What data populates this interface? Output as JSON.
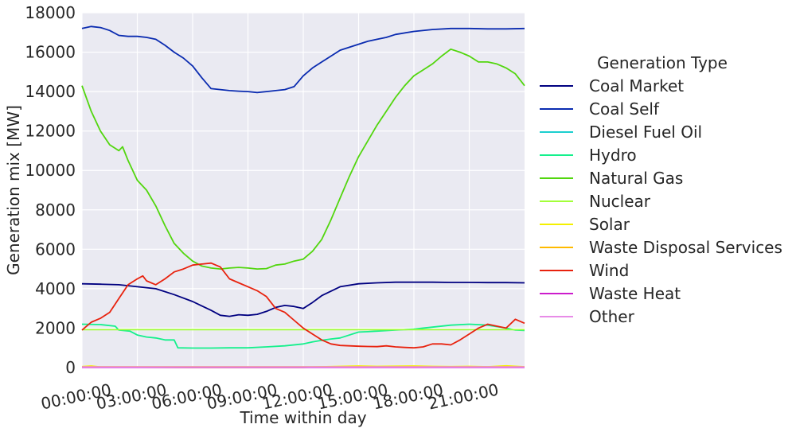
{
  "chart_data": {
    "type": "line",
    "title": "",
    "xlabel": "Time within day",
    "ylabel": "Generation mix [MW]",
    "legend_title": "Generation Type",
    "legend_placement": "right",
    "grid": true,
    "xlim": [
      0,
      24
    ],
    "ylim": [
      0,
      18000
    ],
    "x_ticks": [
      {
        "value": 0,
        "label": "00:00:00"
      },
      {
        "value": 3,
        "label": "03:00:00"
      },
      {
        "value": 6,
        "label": "06:00:00"
      },
      {
        "value": 9,
        "label": "09:00:00"
      },
      {
        "value": 12,
        "label": "12:00:00"
      },
      {
        "value": 15,
        "label": "15:00:00"
      },
      {
        "value": 18,
        "label": "18:00:00"
      },
      {
        "value": 21,
        "label": "21:00:00"
      }
    ],
    "y_ticks": [
      {
        "value": 0,
        "label": "0"
      },
      {
        "value": 2000,
        "label": "2000"
      },
      {
        "value": 4000,
        "label": "4000"
      },
      {
        "value": 6000,
        "label": "6000"
      },
      {
        "value": 8000,
        "label": "8000"
      },
      {
        "value": 10000,
        "label": "10000"
      },
      {
        "value": 12000,
        "label": "12000"
      },
      {
        "value": 14000,
        "label": "14000"
      },
      {
        "value": 16000,
        "label": "16000"
      },
      {
        "value": 18000,
        "label": "18000"
      }
    ],
    "series": [
      {
        "name": "Coal Market",
        "color": "#000080",
        "x": [
          0,
          1,
          2,
          3,
          4,
          5,
          6,
          7,
          7.5,
          8,
          8.5,
          9,
          9.5,
          10,
          10.5,
          11,
          11.5,
          12,
          12.5,
          13,
          14,
          15,
          16,
          17,
          18,
          19,
          20,
          21,
          22,
          23,
          24
        ],
        "y": [
          4250,
          4230,
          4200,
          4100,
          4000,
          3700,
          3350,
          2900,
          2650,
          2600,
          2680,
          2650,
          2700,
          2850,
          3050,
          3150,
          3100,
          3000,
          3300,
          3650,
          4100,
          4250,
          4300,
          4330,
          4330,
          4330,
          4320,
          4320,
          4310,
          4310,
          4300
        ]
      },
      {
        "name": "Coal Self",
        "color": "#0a2bb0",
        "x": [
          0,
          0.5,
          1,
          1.5,
          2,
          2.5,
          3,
          3.5,
          4,
          4.5,
          5,
          5.5,
          6,
          6.5,
          7,
          7.5,
          8,
          8.5,
          9,
          9.5,
          10,
          10.5,
          11,
          11.5,
          12,
          12.5,
          13,
          13.5,
          14,
          14.5,
          15,
          15.5,
          16,
          16.5,
          17,
          18,
          19,
          20,
          21,
          22,
          23,
          24
        ],
        "y": [
          17200,
          17300,
          17250,
          17100,
          16850,
          16800,
          16800,
          16750,
          16650,
          16350,
          16000,
          15700,
          15300,
          14700,
          14150,
          14100,
          14050,
          14020,
          14000,
          13950,
          14000,
          14050,
          14100,
          14250,
          14800,
          15200,
          15500,
          15800,
          16100,
          16250,
          16400,
          16550,
          16650,
          16750,
          16900,
          17050,
          17150,
          17200,
          17200,
          17180,
          17180,
          17200
        ]
      },
      {
        "name": "Diesel Fuel Oil",
        "color": "#1ccfcf",
        "x": [
          0,
          24
        ],
        "y": [
          20,
          20
        ]
      },
      {
        "name": "Hydro",
        "color": "#14f08c",
        "x": [
          0,
          1,
          1.8,
          2,
          2.6,
          3,
          3.5,
          4,
          4.5,
          5,
          5.2,
          6,
          7,
          8,
          9,
          10,
          11,
          12,
          12.5,
          13,
          13.5,
          14,
          15,
          15.5,
          16,
          17,
          18,
          19,
          20,
          21,
          22,
          23,
          23.5,
          24
        ],
        "y": [
          2200,
          2180,
          2100,
          1900,
          1850,
          1650,
          1550,
          1500,
          1400,
          1400,
          1000,
          990,
          990,
          1000,
          1000,
          1050,
          1100,
          1200,
          1300,
          1380,
          1450,
          1500,
          1800,
          1820,
          1850,
          1900,
          1950,
          2050,
          2150,
          2200,
          2150,
          2000,
          1900,
          1880
        ]
      },
      {
        "name": "Natural Gas",
        "color": "#52d60e",
        "x": [
          0,
          0.5,
          1,
          1.5,
          2,
          2.2,
          2.5,
          3,
          3.5,
          4,
          4.5,
          5,
          5.5,
          6,
          6.5,
          7,
          7.5,
          8,
          8.5,
          9,
          9.5,
          10,
          10.5,
          11,
          11.5,
          12,
          12.5,
          13,
          13.5,
          14,
          14.5,
          15,
          15.5,
          16,
          16.5,
          17,
          17.5,
          18,
          18.5,
          19,
          19.5,
          20,
          20.5,
          21,
          21.5,
          22,
          22.5,
          23,
          23.5,
          24
        ],
        "y": [
          14300,
          13000,
          12000,
          11300,
          11000,
          11200,
          10500,
          9500,
          9000,
          8200,
          7200,
          6300,
          5800,
          5400,
          5150,
          5050,
          5000,
          5050,
          5080,
          5050,
          5000,
          5020,
          5200,
          5250,
          5400,
          5500,
          5900,
          6500,
          7500,
          8600,
          9700,
          10700,
          11500,
          12300,
          13000,
          13700,
          14300,
          14800,
          15100,
          15400,
          15800,
          16150,
          16000,
          15800,
          15500,
          15500,
          15400,
          15200,
          14900,
          14300
        ]
      },
      {
        "name": "Nuclear",
        "color": "#a3ff3a",
        "x": [
          0,
          24
        ],
        "y": [
          1920,
          1920
        ]
      },
      {
        "name": "Solar",
        "color": "#f4f000",
        "x": [
          0,
          0.5,
          1,
          6,
          12,
          13,
          14,
          15,
          16,
          17,
          18,
          19,
          20,
          21,
          22,
          23,
          24
        ],
        "y": [
          50,
          80,
          30,
          0,
          10,
          40,
          60,
          80,
          60,
          70,
          80,
          60,
          50,
          60,
          40,
          90,
          40
        ]
      },
      {
        "name": "Waste Disposal Services",
        "color": "#ffba00",
        "x": [
          0,
          24
        ],
        "y": [
          40,
          40
        ]
      },
      {
        "name": "Wind",
        "color": "#e8220e",
        "x": [
          0,
          0.5,
          1,
          1.5,
          2,
          2.5,
          3,
          3.3,
          3.5,
          4,
          4.5,
          5,
          5.5,
          6,
          6.5,
          7,
          7.5,
          8,
          8.5,
          9,
          9.5,
          10,
          10.5,
          11,
          11.5,
          12,
          12.5,
          13,
          13.5,
          14,
          14.5,
          15,
          15.5,
          16,
          16.5,
          17,
          17.5,
          18,
          18.5,
          19,
          19.5,
          20,
          20.5,
          21,
          21.5,
          22,
          22.5,
          23,
          23.5,
          24
        ],
        "y": [
          1900,
          2300,
          2500,
          2800,
          3500,
          4200,
          4500,
          4650,
          4400,
          4200,
          4500,
          4850,
          5000,
          5200,
          5250,
          5300,
          5100,
          4500,
          4300,
          4100,
          3900,
          3600,
          3000,
          2800,
          2400,
          2000,
          1700,
          1400,
          1200,
          1120,
          1100,
          1080,
          1070,
          1060,
          1100,
          1050,
          1020,
          1000,
          1050,
          1200,
          1200,
          1150,
          1400,
          1700,
          2000,
          2200,
          2100,
          2000,
          2450,
          2250
        ]
      },
      {
        "name": "Waste Heat",
        "color": "#cc1ccc",
        "x": [
          0,
          24
        ],
        "y": [
          10,
          10
        ]
      },
      {
        "name": "Other",
        "color": "#e88ce8",
        "x": [
          0,
          24
        ],
        "y": [
          30,
          30
        ]
      }
    ]
  }
}
